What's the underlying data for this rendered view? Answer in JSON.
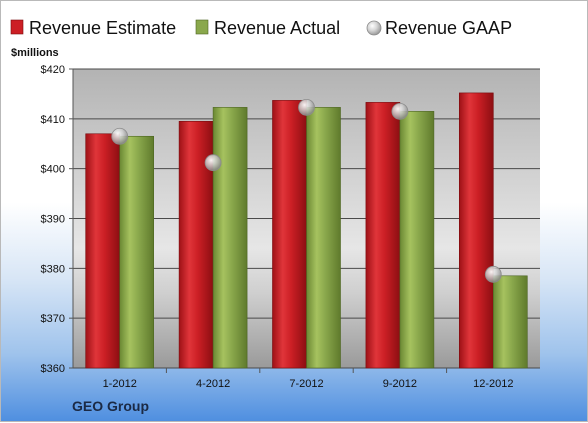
{
  "chart_data": {
    "type": "bar",
    "unit_label": "$millions",
    "categories": [
      "1-2012",
      "4-2012",
      "7-2012",
      "9-2012",
      "12-2012"
    ],
    "series": [
      {
        "name": "Revenue Estimate",
        "kind": "bar",
        "color": "#cc1f25",
        "values": [
          407,
          409.5,
          413.7,
          413.3,
          415.2
        ]
      },
      {
        "name": "Revenue Actual",
        "kind": "bar",
        "color": "#8aa84c",
        "values": [
          406.5,
          412.3,
          412.3,
          411.5,
          378.5
        ]
      },
      {
        "name": "Revenue GAAP",
        "kind": "marker",
        "color": "#c4c4c4",
        "values": [
          406.5,
          401.2,
          412.3,
          411.5,
          378.8
        ]
      }
    ],
    "ylim": [
      360,
      420
    ],
    "yticks": [
      360,
      370,
      380,
      390,
      400,
      410,
      420
    ],
    "ytick_labels": [
      "$360",
      "$370",
      "$380",
      "$390",
      "$400",
      "$410",
      "$420"
    ],
    "grid": true,
    "legend": "top"
  },
  "company": "GEO Group"
}
